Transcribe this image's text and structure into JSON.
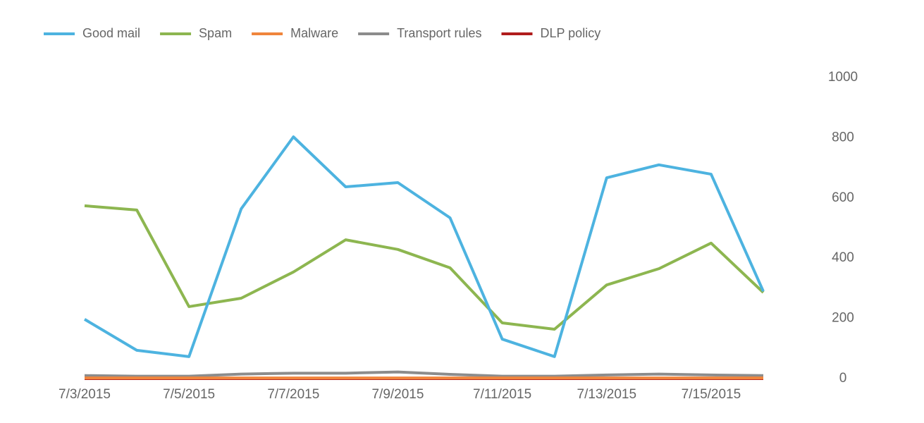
{
  "chart_data": {
    "type": "line",
    "categories": [
      "7/3/2015",
      null,
      "7/5/2015",
      null,
      "7/7/2015",
      null,
      "7/9/2015",
      null,
      "7/11/2015",
      null,
      "7/13/2015",
      null,
      "7/15/2015",
      null
    ],
    "series": [
      {
        "name": "Good mail",
        "color": "#4db3e0",
        "values": [
          197,
          94,
          73,
          564,
          803,
          637,
          651,
          534,
          131,
          73,
          667,
          710,
          679,
          290
        ]
      },
      {
        "name": "Spam",
        "color": "#8db650",
        "values": [
          574,
          560,
          239,
          267,
          354,
          461,
          429,
          368,
          185,
          164,
          311,
          365,
          450,
          286
        ]
      },
      {
        "name": "Malware",
        "color": "#f0853c",
        "values": [
          2,
          2,
          2,
          2,
          2,
          2,
          2,
          2,
          2,
          2,
          2,
          2,
          2,
          2
        ]
      },
      {
        "name": "Transport rules",
        "color": "#8c8c8c",
        "values": [
          10,
          8,
          8,
          15,
          18,
          18,
          22,
          14,
          8,
          8,
          12,
          15,
          12,
          10
        ]
      },
      {
        "name": "DLP policy",
        "color": "#b01c1c",
        "values": [
          0,
          0,
          0,
          0,
          0,
          0,
          0,
          0,
          0,
          0,
          0,
          0,
          0,
          0
        ]
      }
    ],
    "ylim": [
      0,
      1000
    ],
    "yticks": [
      0,
      200,
      400,
      600,
      800,
      1000
    ],
    "legend": "top-left",
    "grid": false
  }
}
